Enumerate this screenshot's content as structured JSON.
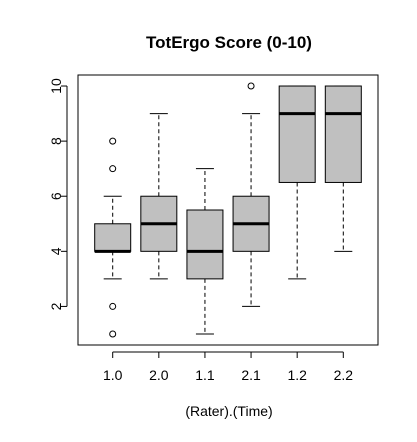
{
  "chart_data": {
    "type": "boxplot",
    "title": "TotErgo Score (0-10)",
    "xlabel": "(Rater).(Time)",
    "ylabel": "",
    "categories": [
      "1.0",
      "2.0",
      "1.1",
      "2.1",
      "1.2",
      "2.2"
    ],
    "ylim": [
      0.6,
      10.4
    ],
    "y_ticks": [
      2,
      4,
      6,
      8,
      10
    ],
    "grid": false,
    "legend": "none",
    "box_fill_color": "#c0c0c0",
    "boxes": [
      {
        "category": "1.0",
        "min": 3,
        "q1": 4,
        "median": 4,
        "q3": 5,
        "max": 6,
        "outliers": [
          8,
          7,
          2,
          1
        ]
      },
      {
        "category": "2.0",
        "min": 3,
        "q1": 4,
        "median": 5,
        "q3": 6,
        "max": 9,
        "outliers": []
      },
      {
        "category": "1.1",
        "min": 1,
        "q1": 3,
        "median": 4,
        "q3": 5.5,
        "max": 7,
        "outliers": []
      },
      {
        "category": "2.1",
        "min": 2,
        "q1": 4,
        "median": 5,
        "q3": 6,
        "max": 9,
        "outliers": [
          10
        ]
      },
      {
        "category": "1.2",
        "min": 3,
        "q1": 6.5,
        "median": 9,
        "q3": 10,
        "max": 10,
        "outliers": []
      },
      {
        "category": "2.2",
        "min": 4,
        "q1": 6.5,
        "median": 9,
        "q3": 10,
        "max": 10,
        "outliers": []
      }
    ]
  }
}
